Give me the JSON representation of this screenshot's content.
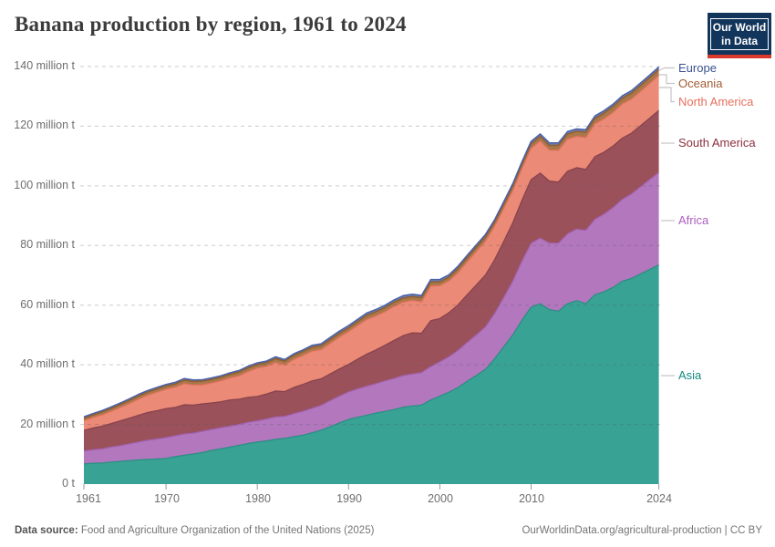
{
  "header": {
    "title": "Banana production by region, 1961 to 2024",
    "logo": {
      "line1": "Our World",
      "line2": "in Data",
      "bg_color": "#12355b",
      "accent_color": "#d93a2b"
    }
  },
  "chart_data": {
    "type": "area",
    "stacked": true,
    "title": "Banana production by region, 1961 to 2024",
    "xlabel": "",
    "ylabel": "",
    "xlim": [
      1961,
      2024
    ],
    "ylim": [
      0,
      140
    ],
    "grid": "dashed-horizontal",
    "legend_position": "right-of-plot",
    "unit": "million t",
    "xtick_years": [
      1961,
      1970,
      1980,
      1990,
      2000,
      2010,
      2024
    ],
    "xtick_labels": [
      "1961",
      "1970",
      "1980",
      "1990",
      "2000",
      "2010",
      "2024"
    ],
    "yticks": [
      {
        "value": 140,
        "label": "140 million t"
      },
      {
        "value": 120,
        "label": "120 million t"
      },
      {
        "value": 100,
        "label": "100 million t"
      },
      {
        "value": 80,
        "label": "80 million t"
      },
      {
        "value": 60,
        "label": "60 million t"
      },
      {
        "value": 40,
        "label": "40 million t"
      },
      {
        "value": 20,
        "label": "20 million t"
      },
      {
        "value": 0,
        "label": "0 t"
      }
    ],
    "x": [
      1961,
      1962,
      1963,
      1964,
      1965,
      1966,
      1967,
      1968,
      1969,
      1970,
      1971,
      1972,
      1973,
      1974,
      1975,
      1976,
      1977,
      1978,
      1979,
      1980,
      1981,
      1982,
      1983,
      1984,
      1985,
      1986,
      1987,
      1988,
      1989,
      1990,
      1991,
      1992,
      1993,
      1994,
      1995,
      1996,
      1997,
      1998,
      1999,
      2000,
      2001,
      2002,
      2003,
      2004,
      2005,
      2006,
      2007,
      2008,
      2009,
      2010,
      2011,
      2012,
      2013,
      2014,
      2015,
      2016,
      2017,
      2018,
      2019,
      2020,
      2021,
      2022,
      2023,
      2024
    ],
    "series": [
      {
        "name": "Asia",
        "fill_color": "#38a294",
        "stroke_color": "#2a8e82",
        "label_color": "#12897e",
        "stroke_width": 1.2,
        "values": [
          6.8,
          7.0,
          7.1,
          7.4,
          7.6,
          7.9,
          8.1,
          8.3,
          8.4,
          8.6,
          9.2,
          9.7,
          10.1,
          10.6,
          11.3,
          11.8,
          12.4,
          13.0,
          13.6,
          14.1,
          14.5,
          15.0,
          15.3,
          15.9,
          16.4,
          17.2,
          18.1,
          19.3,
          20.5,
          21.7,
          22.4,
          23.1,
          23.8,
          24.4,
          25.0,
          25.8,
          26.2,
          26.5,
          28.2,
          29.5,
          30.8,
          32.4,
          34.5,
          36.4,
          38.5,
          42.0,
          46.0,
          50.0,
          55.0,
          59.3,
          60.5,
          58.5,
          58.0,
          60.5,
          61.5,
          60.5,
          63.5,
          64.5,
          66.0,
          68.0,
          69.0,
          70.5,
          72.0,
          73.5
        ]
      },
      {
        "name": "Africa",
        "fill_color": "#b277bd",
        "stroke_color": "#a161ae",
        "label_color": "#ad5ec0",
        "stroke_width": 1.2,
        "values": [
          4.3,
          4.5,
          4.7,
          5.0,
          5.3,
          5.6,
          6.0,
          6.4,
          6.7,
          7.0,
          7.0,
          7.1,
          7.0,
          7.1,
          7.0,
          7.1,
          7.0,
          7.0,
          7.1,
          7.1,
          7.3,
          7.5,
          7.4,
          7.7,
          8.0,
          8.2,
          8.3,
          8.7,
          9.0,
          9.2,
          9.5,
          9.7,
          9.9,
          10.2,
          10.4,
          10.6,
          10.7,
          10.9,
          11.2,
          11.5,
          11.9,
          12.4,
          13.0,
          13.6,
          14.2,
          15.2,
          16.5,
          18.0,
          19.8,
          21.4,
          22.0,
          22.3,
          22.8,
          23.4,
          24.0,
          24.6,
          25.3,
          26.0,
          26.8,
          27.5,
          28.3,
          29.2,
          30.1,
          31.0
        ]
      },
      {
        "name": "South America",
        "fill_color": "#9b515a",
        "stroke_color": "#86414c",
        "label_color": "#8a2f3c",
        "stroke_width": 1.2,
        "values": [
          6.9,
          7.3,
          7.6,
          7.9,
          8.3,
          8.6,
          9.0,
          9.3,
          9.5,
          9.7,
          9.5,
          9.8,
          9.4,
          9.2,
          8.9,
          8.7,
          8.8,
          8.5,
          8.4,
          8.2,
          8.4,
          8.7,
          8.3,
          8.8,
          9.0,
          9.2,
          8.9,
          9.0,
          9.1,
          9.2,
          10.0,
          10.8,
          11.3,
          12.0,
          12.8,
          13.4,
          13.8,
          13.2,
          15.4,
          14.5,
          14.8,
          15.3,
          16.0,
          16.8,
          17.4,
          18.0,
          18.8,
          19.6,
          20.4,
          21.4,
          21.8,
          20.8,
          20.5,
          21.0,
          20.6,
          20.4,
          21.0,
          20.8,
          20.6,
          20.5,
          20.4,
          20.5,
          20.6,
          20.8
        ]
      },
      {
        "name": "North America",
        "fill_color": "#eb8a76",
        "stroke_color": "#df7260",
        "label_color": "#e8705f",
        "stroke_width": 1.2,
        "values": [
          3.2,
          3.5,
          3.8,
          4.1,
          4.5,
          4.9,
          5.4,
          5.8,
          6.2,
          6.5,
          6.8,
          7.1,
          6.7,
          6.4,
          6.7,
          7.0,
          7.4,
          7.8,
          8.6,
          9.5,
          9.3,
          9.6,
          8.9,
          9.4,
          9.7,
          10.0,
          9.8,
          10.2,
          10.7,
          11.0,
          11.3,
          11.6,
          11.4,
          11.2,
          11.4,
          11.2,
          10.9,
          10.5,
          11.6,
          11.0,
          10.6,
          10.8,
          11.0,
          11.2,
          11.3,
          11.2,
          11.0,
          10.8,
          10.6,
          10.5,
          10.7,
          10.4,
          10.6,
          10.8,
          10.5,
          10.7,
          11.0,
          11.2,
          11.3,
          11.5,
          11.4,
          11.5,
          11.6,
          11.7
        ]
      },
      {
        "name": "Oceania",
        "fill_color": "#aa7848",
        "stroke_color": "#8f5f33",
        "label_color": "#a05c33",
        "stroke_width": 1.6,
        "values": [
          0.9,
          0.9,
          1.0,
          1.0,
          1.0,
          1.1,
          1.1,
          1.1,
          1.1,
          1.1,
          1.1,
          1.2,
          1.2,
          1.2,
          1.2,
          1.2,
          1.2,
          1.3,
          1.3,
          1.2,
          1.2,
          1.3,
          1.3,
          1.3,
          1.3,
          1.3,
          1.3,
          1.3,
          1.3,
          1.3,
          1.3,
          1.4,
          1.4,
          1.4,
          1.4,
          1.4,
          1.3,
          1.4,
          1.4,
          1.3,
          1.3,
          1.4,
          1.4,
          1.4,
          1.5,
          1.4,
          1.5,
          1.5,
          1.5,
          1.5,
          1.6,
          1.6,
          1.7,
          1.7,
          1.7,
          1.8,
          1.8,
          1.9,
          1.9,
          1.9,
          2.0,
          2.0,
          2.0,
          2.0
        ]
      },
      {
        "name": "Europe",
        "fill_color": "#6d80bd",
        "stroke_color": "#4c62a8",
        "label_color": "#3a5290",
        "stroke_width": 1.5,
        "values": [
          0.45,
          0.46,
          0.47,
          0.48,
          0.49,
          0.5,
          0.5,
          0.5,
          0.5,
          0.5,
          0.5,
          0.5,
          0.5,
          0.5,
          0.5,
          0.5,
          0.5,
          0.5,
          0.52,
          0.55,
          0.55,
          0.56,
          0.57,
          0.58,
          0.6,
          0.62,
          0.65,
          0.7,
          0.72,
          0.75,
          0.76,
          0.77,
          0.75,
          0.76,
          0.78,
          0.78,
          0.78,
          0.78,
          0.8,
          0.8,
          0.79,
          0.8,
          0.81,
          0.8,
          0.8,
          0.79,
          0.8,
          0.81,
          0.82,
          0.8,
          0.81,
          0.8,
          0.82,
          0.83,
          0.8,
          0.81,
          0.83,
          0.82,
          0.84,
          0.82,
          0.83,
          0.84,
          0.85,
          0.85
        ]
      }
    ]
  },
  "footer": {
    "source_label": "Data source:",
    "source_text": " Food and Agriculture Organization of the United Nations (2025)",
    "right_text": "OurWorldinData.org/agricultural-production | CC BY"
  }
}
